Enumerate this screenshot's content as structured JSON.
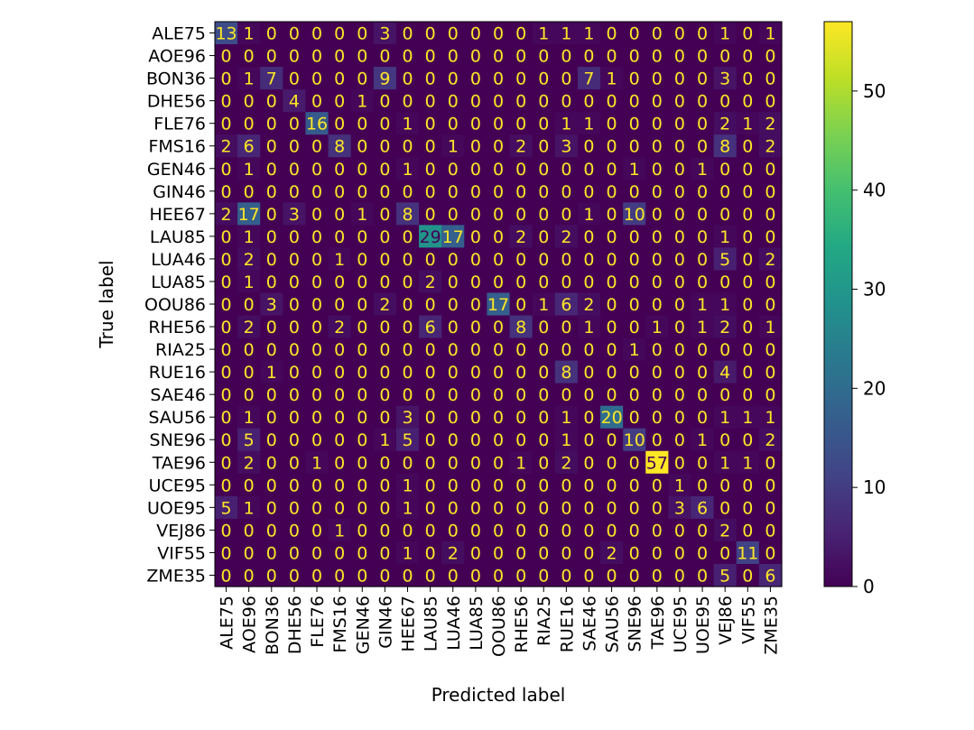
{
  "chart_data": {
    "type": "heatmap",
    "xlabel": "Predicted label",
    "ylabel": "True label",
    "labels": [
      "ALE75",
      "AOE96",
      "BON36",
      "DHE56",
      "FLE76",
      "FMS16",
      "GEN46",
      "GIN46",
      "HEE67",
      "LAU85",
      "LUA46",
      "LUA85",
      "OOU86",
      "RHE56",
      "RIA25",
      "RUE16",
      "SAE46",
      "SAU56",
      "SNE96",
      "TAE96",
      "UCE95",
      "UOE95",
      "VEJ86",
      "VIF55",
      "ZME35"
    ],
    "matrix": [
      [
        13,
        1,
        0,
        0,
        0,
        0,
        0,
        3,
        0,
        0,
        0,
        0,
        0,
        0,
        1,
        1,
        1,
        0,
        0,
        0,
        0,
        0,
        1,
        0,
        1
      ],
      [
        0,
        0,
        0,
        0,
        0,
        0,
        0,
        0,
        0,
        0,
        0,
        0,
        0,
        0,
        0,
        0,
        0,
        0,
        0,
        0,
        0,
        0,
        0,
        0,
        0
      ],
      [
        0,
        1,
        7,
        0,
        0,
        0,
        0,
        9,
        0,
        0,
        0,
        0,
        0,
        0,
        0,
        0,
        7,
        1,
        0,
        0,
        0,
        0,
        3,
        0,
        0
      ],
      [
        0,
        0,
        0,
        4,
        0,
        0,
        1,
        0,
        0,
        0,
        0,
        0,
        0,
        0,
        0,
        0,
        0,
        0,
        0,
        0,
        0,
        0,
        0,
        0,
        0
      ],
      [
        0,
        0,
        0,
        0,
        16,
        0,
        0,
        0,
        1,
        0,
        0,
        0,
        0,
        0,
        0,
        1,
        1,
        0,
        0,
        0,
        0,
        0,
        2,
        1,
        2
      ],
      [
        2,
        6,
        0,
        0,
        0,
        8,
        0,
        0,
        0,
        0,
        1,
        0,
        0,
        2,
        0,
        3,
        0,
        0,
        0,
        0,
        0,
        0,
        8,
        0,
        2
      ],
      [
        0,
        1,
        0,
        0,
        0,
        0,
        0,
        0,
        1,
        0,
        0,
        0,
        0,
        0,
        0,
        0,
        0,
        0,
        1,
        0,
        0,
        1,
        0,
        0,
        0
      ],
      [
        0,
        0,
        0,
        0,
        0,
        0,
        0,
        0,
        0,
        0,
        0,
        0,
        0,
        0,
        0,
        0,
        0,
        0,
        0,
        0,
        0,
        0,
        0,
        0,
        0
      ],
      [
        2,
        17,
        0,
        3,
        0,
        0,
        1,
        0,
        8,
        0,
        0,
        0,
        0,
        0,
        0,
        0,
        1,
        0,
        10,
        0,
        0,
        0,
        0,
        0,
        0
      ],
      [
        0,
        1,
        0,
        0,
        0,
        0,
        0,
        0,
        0,
        29,
        17,
        0,
        0,
        2,
        0,
        2,
        0,
        0,
        0,
        0,
        0,
        0,
        1,
        0,
        0
      ],
      [
        0,
        2,
        0,
        0,
        0,
        1,
        0,
        0,
        0,
        0,
        0,
        0,
        0,
        0,
        0,
        0,
        0,
        0,
        0,
        0,
        0,
        0,
        5,
        0,
        2
      ],
      [
        0,
        1,
        0,
        0,
        0,
        0,
        0,
        0,
        0,
        2,
        0,
        0,
        0,
        0,
        0,
        0,
        0,
        0,
        0,
        0,
        0,
        0,
        0,
        0,
        0
      ],
      [
        0,
        0,
        3,
        0,
        0,
        0,
        0,
        2,
        0,
        0,
        0,
        0,
        17,
        0,
        1,
        6,
        2,
        0,
        0,
        0,
        0,
        1,
        1,
        0,
        0
      ],
      [
        0,
        2,
        0,
        0,
        0,
        2,
        0,
        0,
        0,
        6,
        0,
        0,
        0,
        8,
        0,
        0,
        1,
        0,
        0,
        1,
        0,
        1,
        2,
        0,
        1
      ],
      [
        0,
        0,
        0,
        0,
        0,
        0,
        0,
        0,
        0,
        0,
        0,
        0,
        0,
        0,
        0,
        0,
        0,
        0,
        1,
        0,
        0,
        0,
        0,
        0,
        0
      ],
      [
        0,
        0,
        1,
        0,
        0,
        0,
        0,
        0,
        0,
        0,
        0,
        0,
        0,
        0,
        0,
        8,
        0,
        0,
        0,
        0,
        0,
        0,
        4,
        0,
        0
      ],
      [
        0,
        0,
        0,
        0,
        0,
        0,
        0,
        0,
        0,
        0,
        0,
        0,
        0,
        0,
        0,
        0,
        0,
        0,
        0,
        0,
        0,
        0,
        0,
        0,
        0
      ],
      [
        0,
        1,
        0,
        0,
        0,
        0,
        0,
        0,
        3,
        0,
        0,
        0,
        0,
        0,
        0,
        1,
        0,
        20,
        0,
        0,
        0,
        0,
        1,
        1,
        1
      ],
      [
        0,
        5,
        0,
        0,
        0,
        0,
        0,
        1,
        5,
        0,
        0,
        0,
        0,
        0,
        0,
        1,
        0,
        0,
        10,
        0,
        0,
        1,
        0,
        0,
        2
      ],
      [
        0,
        2,
        0,
        0,
        1,
        0,
        0,
        0,
        0,
        0,
        0,
        0,
        0,
        1,
        0,
        2,
        0,
        0,
        0,
        57,
        0,
        0,
        1,
        1,
        0
      ],
      [
        0,
        0,
        0,
        0,
        0,
        0,
        0,
        0,
        1,
        0,
        0,
        0,
        0,
        0,
        0,
        0,
        0,
        0,
        0,
        0,
        1,
        0,
        0,
        0,
        0
      ],
      [
        5,
        1,
        0,
        0,
        0,
        0,
        0,
        0,
        1,
        0,
        0,
        0,
        0,
        0,
        0,
        0,
        0,
        0,
        0,
        0,
        3,
        6,
        0,
        0,
        0
      ],
      [
        0,
        0,
        0,
        0,
        0,
        1,
        0,
        0,
        0,
        0,
        0,
        0,
        0,
        0,
        0,
        0,
        0,
        0,
        0,
        0,
        0,
        0,
        2,
        0,
        0
      ],
      [
        0,
        0,
        0,
        0,
        0,
        0,
        0,
        0,
        1,
        0,
        2,
        0,
        0,
        0,
        0,
        0,
        0,
        2,
        0,
        0,
        0,
        0,
        0,
        11,
        0
      ],
      [
        0,
        0,
        0,
        0,
        0,
        0,
        0,
        0,
        0,
        0,
        0,
        0,
        0,
        0,
        0,
        0,
        0,
        0,
        0,
        0,
        0,
        0,
        5,
        0,
        6
      ]
    ],
    "value_range": [
      0,
      57
    ],
    "colormap": "viridis",
    "colorbar_ticks": [
      0,
      10,
      20,
      30,
      40,
      50
    ],
    "text_color_dark_cells": "#fde725",
    "text_color_light_cells": "#440154"
  }
}
